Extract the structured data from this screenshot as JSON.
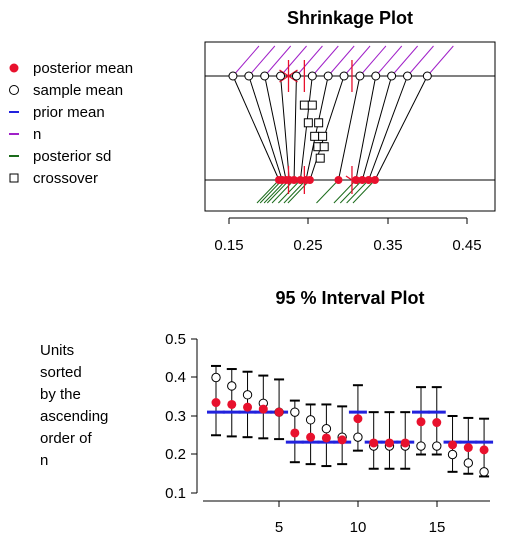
{
  "chart_data": [
    {
      "type": "scatter",
      "title": "Shrinkage Plot",
      "xlabel": "",
      "ylabel": "",
      "xlim": [
        0.13,
        0.47
      ],
      "x_ticks": [
        "0.15",
        "0.25",
        "0.35",
        "0.45"
      ],
      "x_tick_values": [
        0.15,
        0.25,
        0.35,
        0.45
      ],
      "grid": false,
      "sample_means": [
        0.155,
        0.175,
        0.195,
        0.215,
        0.235,
        0.255,
        0.275,
        0.295,
        0.315,
        0.335,
        0.355,
        0.375,
        0.4
      ],
      "posterior_means": [
        0.213,
        0.217,
        0.222,
        0.226,
        0.232,
        0.24,
        0.247,
        0.252,
        0.288,
        0.31,
        0.318,
        0.326,
        0.334
      ],
      "prior_means": [
        0.225,
        0.245,
        0.305
      ],
      "crossover_points": [
        {
          "x": 0.245,
          "y": 0.72
        },
        {
          "x": 0.255,
          "y": 0.72
        },
        {
          "x": 0.25,
          "y": 0.55
        },
        {
          "x": 0.263,
          "y": 0.55
        },
        {
          "x": 0.258,
          "y": 0.42
        },
        {
          "x": 0.262,
          "y": 0.32
        },
        {
          "x": 0.268,
          "y": 0.42
        },
        {
          "x": 0.27,
          "y": 0.32
        },
        {
          "x": 0.265,
          "y": 0.21
        }
      ],
      "legend": [
        {
          "label": "posterior mean",
          "symbol": "dot",
          "color": "#e8112d"
        },
        {
          "label": "sample mean",
          "symbol": "circle",
          "color": "#000000"
        },
        {
          "label": "prior mean",
          "symbol": "dash",
          "color": "#2222dd"
        },
        {
          "label": "n",
          "symbol": "dash",
          "color": "#a020c8"
        },
        {
          "label": "posterior sd",
          "symbol": "dash",
          "color": "#1a6b1a"
        },
        {
          "label": "crossover",
          "symbol": "square",
          "color": "#000000"
        }
      ]
    },
    {
      "type": "scatter",
      "title": "95 % Interval Plot",
      "xlabel": "",
      "ylabel": "Units sorted by the ascending order of n",
      "ylabel_lines": [
        "Units",
        "sorted",
        "by the",
        "ascending",
        "order of",
        "n"
      ],
      "xlim": [
        0.5,
        18.6
      ],
      "ylim": [
        0.1,
        0.52
      ],
      "x_ticks": [
        "5",
        "10",
        "15"
      ],
      "x_tick_values": [
        5,
        10,
        15
      ],
      "y_ticks": [
        "0.1",
        "0.2",
        "0.3",
        "0.4",
        "0.5"
      ],
      "y_tick_values": [
        0.1,
        0.2,
        0.3,
        0.4,
        0.5
      ],
      "grid": false,
      "x": [
        1,
        2,
        3,
        4,
        5,
        6,
        7,
        8,
        9,
        10,
        11,
        12,
        13,
        14,
        15,
        16,
        17,
        18
      ],
      "series": [
        {
          "name": "posterior mean",
          "values": [
            0.335,
            0.33,
            0.323,
            0.318,
            0.31,
            0.256,
            0.245,
            0.243,
            0.238,
            0.293,
            0.23,
            0.23,
            0.23,
            0.285,
            0.283,
            0.225,
            0.218,
            0.212
          ]
        },
        {
          "name": "sample mean",
          "values": [
            0.4,
            0.378,
            0.355,
            0.333,
            0.31,
            0.31,
            0.29,
            0.267,
            0.245,
            0.245,
            0.222,
            0.222,
            0.222,
            0.222,
            0.222,
            0.2,
            0.178,
            0.155
          ]
        },
        {
          "name": "prior mean",
          "values": [
            0.31,
            0.31,
            0.31,
            0.31,
            0.31,
            0.232,
            0.232,
            0.232,
            0.232,
            0.31,
            0.232,
            0.232,
            0.232,
            0.31,
            0.31,
            0.232,
            0.232,
            0.232
          ]
        }
      ],
      "intervals": {
        "lower": [
          0.25,
          0.247,
          0.245,
          0.242,
          0.24,
          0.18,
          0.175,
          0.17,
          0.175,
          0.21,
          0.163,
          0.163,
          0.163,
          0.2,
          0.2,
          0.155,
          0.15,
          0.143
        ],
        "upper": [
          0.43,
          0.422,
          0.415,
          0.405,
          0.395,
          0.34,
          0.33,
          0.33,
          0.325,
          0.38,
          0.31,
          0.31,
          0.31,
          0.375,
          0.375,
          0.3,
          0.295,
          0.293
        ]
      }
    }
  ],
  "colors": {
    "posterior_mean": "#e8112d",
    "sample_mean": "#000000",
    "prior_mean": "#2222dd",
    "n": "#a020c8",
    "posterior_sd": "#1a6b1a",
    "crossover": "#000000"
  }
}
